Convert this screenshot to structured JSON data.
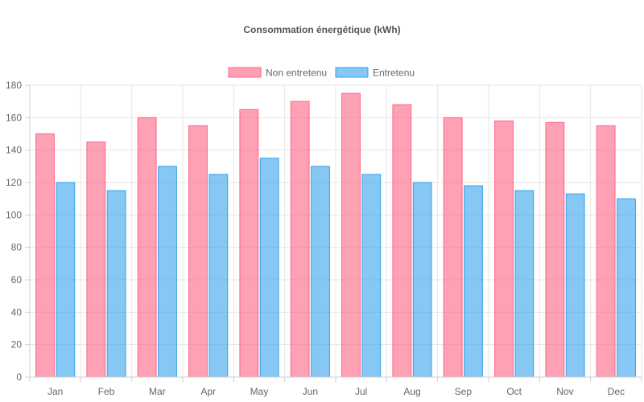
{
  "chart_data": {
    "type": "bar",
    "title": "Consommation énergétique (kWh)",
    "categories": [
      "Jan",
      "Feb",
      "Mar",
      "Apr",
      "May",
      "Jun",
      "Jul",
      "Aug",
      "Sep",
      "Oct",
      "Nov",
      "Dec"
    ],
    "series": [
      {
        "name": "Non entretenu",
        "color": "#ff6384",
        "values": [
          150,
          145,
          160,
          155,
          165,
          170,
          175,
          168,
          160,
          158,
          157,
          155
        ]
      },
      {
        "name": "Entretenu",
        "color": "#36a2eb",
        "values": [
          120,
          115,
          130,
          125,
          135,
          130,
          125,
          120,
          118,
          115,
          113,
          110
        ]
      }
    ],
    "yticks": [
      "0",
      "20",
      "40",
      "60",
      "80",
      "100",
      "120",
      "140",
      "160",
      "180"
    ],
    "ylim": [
      0,
      180
    ],
    "grid": true,
    "legend_position": "top"
  }
}
